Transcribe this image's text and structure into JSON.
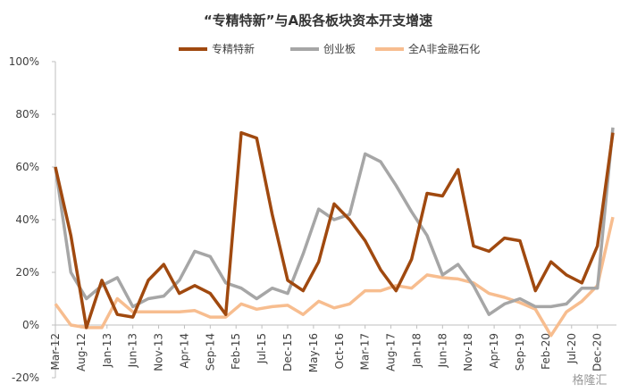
{
  "chart_data": {
    "type": "line",
    "title": "“专精特新”与A股各板块资本开支增速",
    "x": [
      0,
      3,
      6,
      9,
      12,
      15,
      18,
      21,
      24,
      27,
      30,
      33,
      36,
      39,
      42,
      45,
      48,
      51,
      54,
      57,
      60,
      63,
      66,
      69,
      72,
      75,
      78,
      81,
      84,
      87,
      90,
      93,
      96,
      99,
      102,
      105,
      108
    ],
    "xlim": [
      0,
      108
    ],
    "xticks": [
      {
        "value": 0,
        "label": "Mar-12"
      },
      {
        "value": 5,
        "label": "Aug-12"
      },
      {
        "value": 10,
        "label": "Jan-13"
      },
      {
        "value": 15,
        "label": "Jun-13"
      },
      {
        "value": 20,
        "label": "Nov-13"
      },
      {
        "value": 25,
        "label": "Apr-14"
      },
      {
        "value": 30,
        "label": "Sep-14"
      },
      {
        "value": 35,
        "label": "Feb-15"
      },
      {
        "value": 40,
        "label": "Jul-15"
      },
      {
        "value": 45,
        "label": "Dec-15"
      },
      {
        "value": 50,
        "label": "May-16"
      },
      {
        "value": 55,
        "label": "Oct-16"
      },
      {
        "value": 60,
        "label": "Mar-17"
      },
      {
        "value": 65,
        "label": "Aug-17"
      },
      {
        "value": 70,
        "label": "Jan-18"
      },
      {
        "value": 75,
        "label": "Jun-18"
      },
      {
        "value": 80,
        "label": "Nov-18"
      },
      {
        "value": 85,
        "label": "Apr-19"
      },
      {
        "value": 90,
        "label": "Sep-19"
      },
      {
        "value": 95,
        "label": "Feb-20"
      },
      {
        "value": 100,
        "label": "Jul-20"
      },
      {
        "value": 105,
        "label": "Dec-20"
      }
    ],
    "ylim": [
      -20,
      100
    ],
    "yticks": [
      {
        "value": -20,
        "label": "-20%"
      },
      {
        "value": 0,
        "label": "0%"
      },
      {
        "value": 20,
        "label": "20%"
      },
      {
        "value": 40,
        "label": "40%"
      },
      {
        "value": 60,
        "label": "60%"
      },
      {
        "value": 80,
        "label": "80%"
      },
      {
        "value": 100,
        "label": "100%"
      }
    ],
    "series": [
      {
        "name": "专精特新",
        "color": "#a0490f",
        "values": [
          60,
          34,
          -1,
          17,
          4,
          3,
          17,
          23,
          12,
          15,
          12,
          4,
          73,
          71,
          42,
          17,
          13,
          24,
          46,
          40,
          32,
          21,
          13,
          25,
          50,
          49,
          59,
          30,
          28,
          33,
          32,
          13,
          24,
          19,
          16,
          30,
          73
        ]
      },
      {
        "name": "创业板",
        "color": "#a6a6a6",
        "values": [
          60,
          20,
          10,
          15,
          18,
          7,
          10,
          11,
          17,
          28,
          26,
          16,
          14,
          10,
          14,
          12,
          27,
          44,
          40,
          42,
          65,
          62,
          53,
          43,
          34,
          19,
          23,
          15,
          4,
          8,
          10,
          7,
          7,
          8,
          14,
          14,
          75
        ]
      },
      {
        "name": "全A非金融石化",
        "color": "#f7bd8f",
        "values": [
          8,
          0,
          -1,
          -1,
          10,
          5,
          5,
          5,
          5,
          5.5,
          3,
          3,
          8,
          6,
          7,
          7.5,
          4,
          9,
          6.5,
          8,
          13,
          13,
          15,
          14,
          19,
          18,
          17.5,
          16,
          12,
          10.5,
          8.5,
          6,
          -4,
          5,
          9,
          15,
          41
        ]
      }
    ]
  },
  "watermark": "格隆汇"
}
